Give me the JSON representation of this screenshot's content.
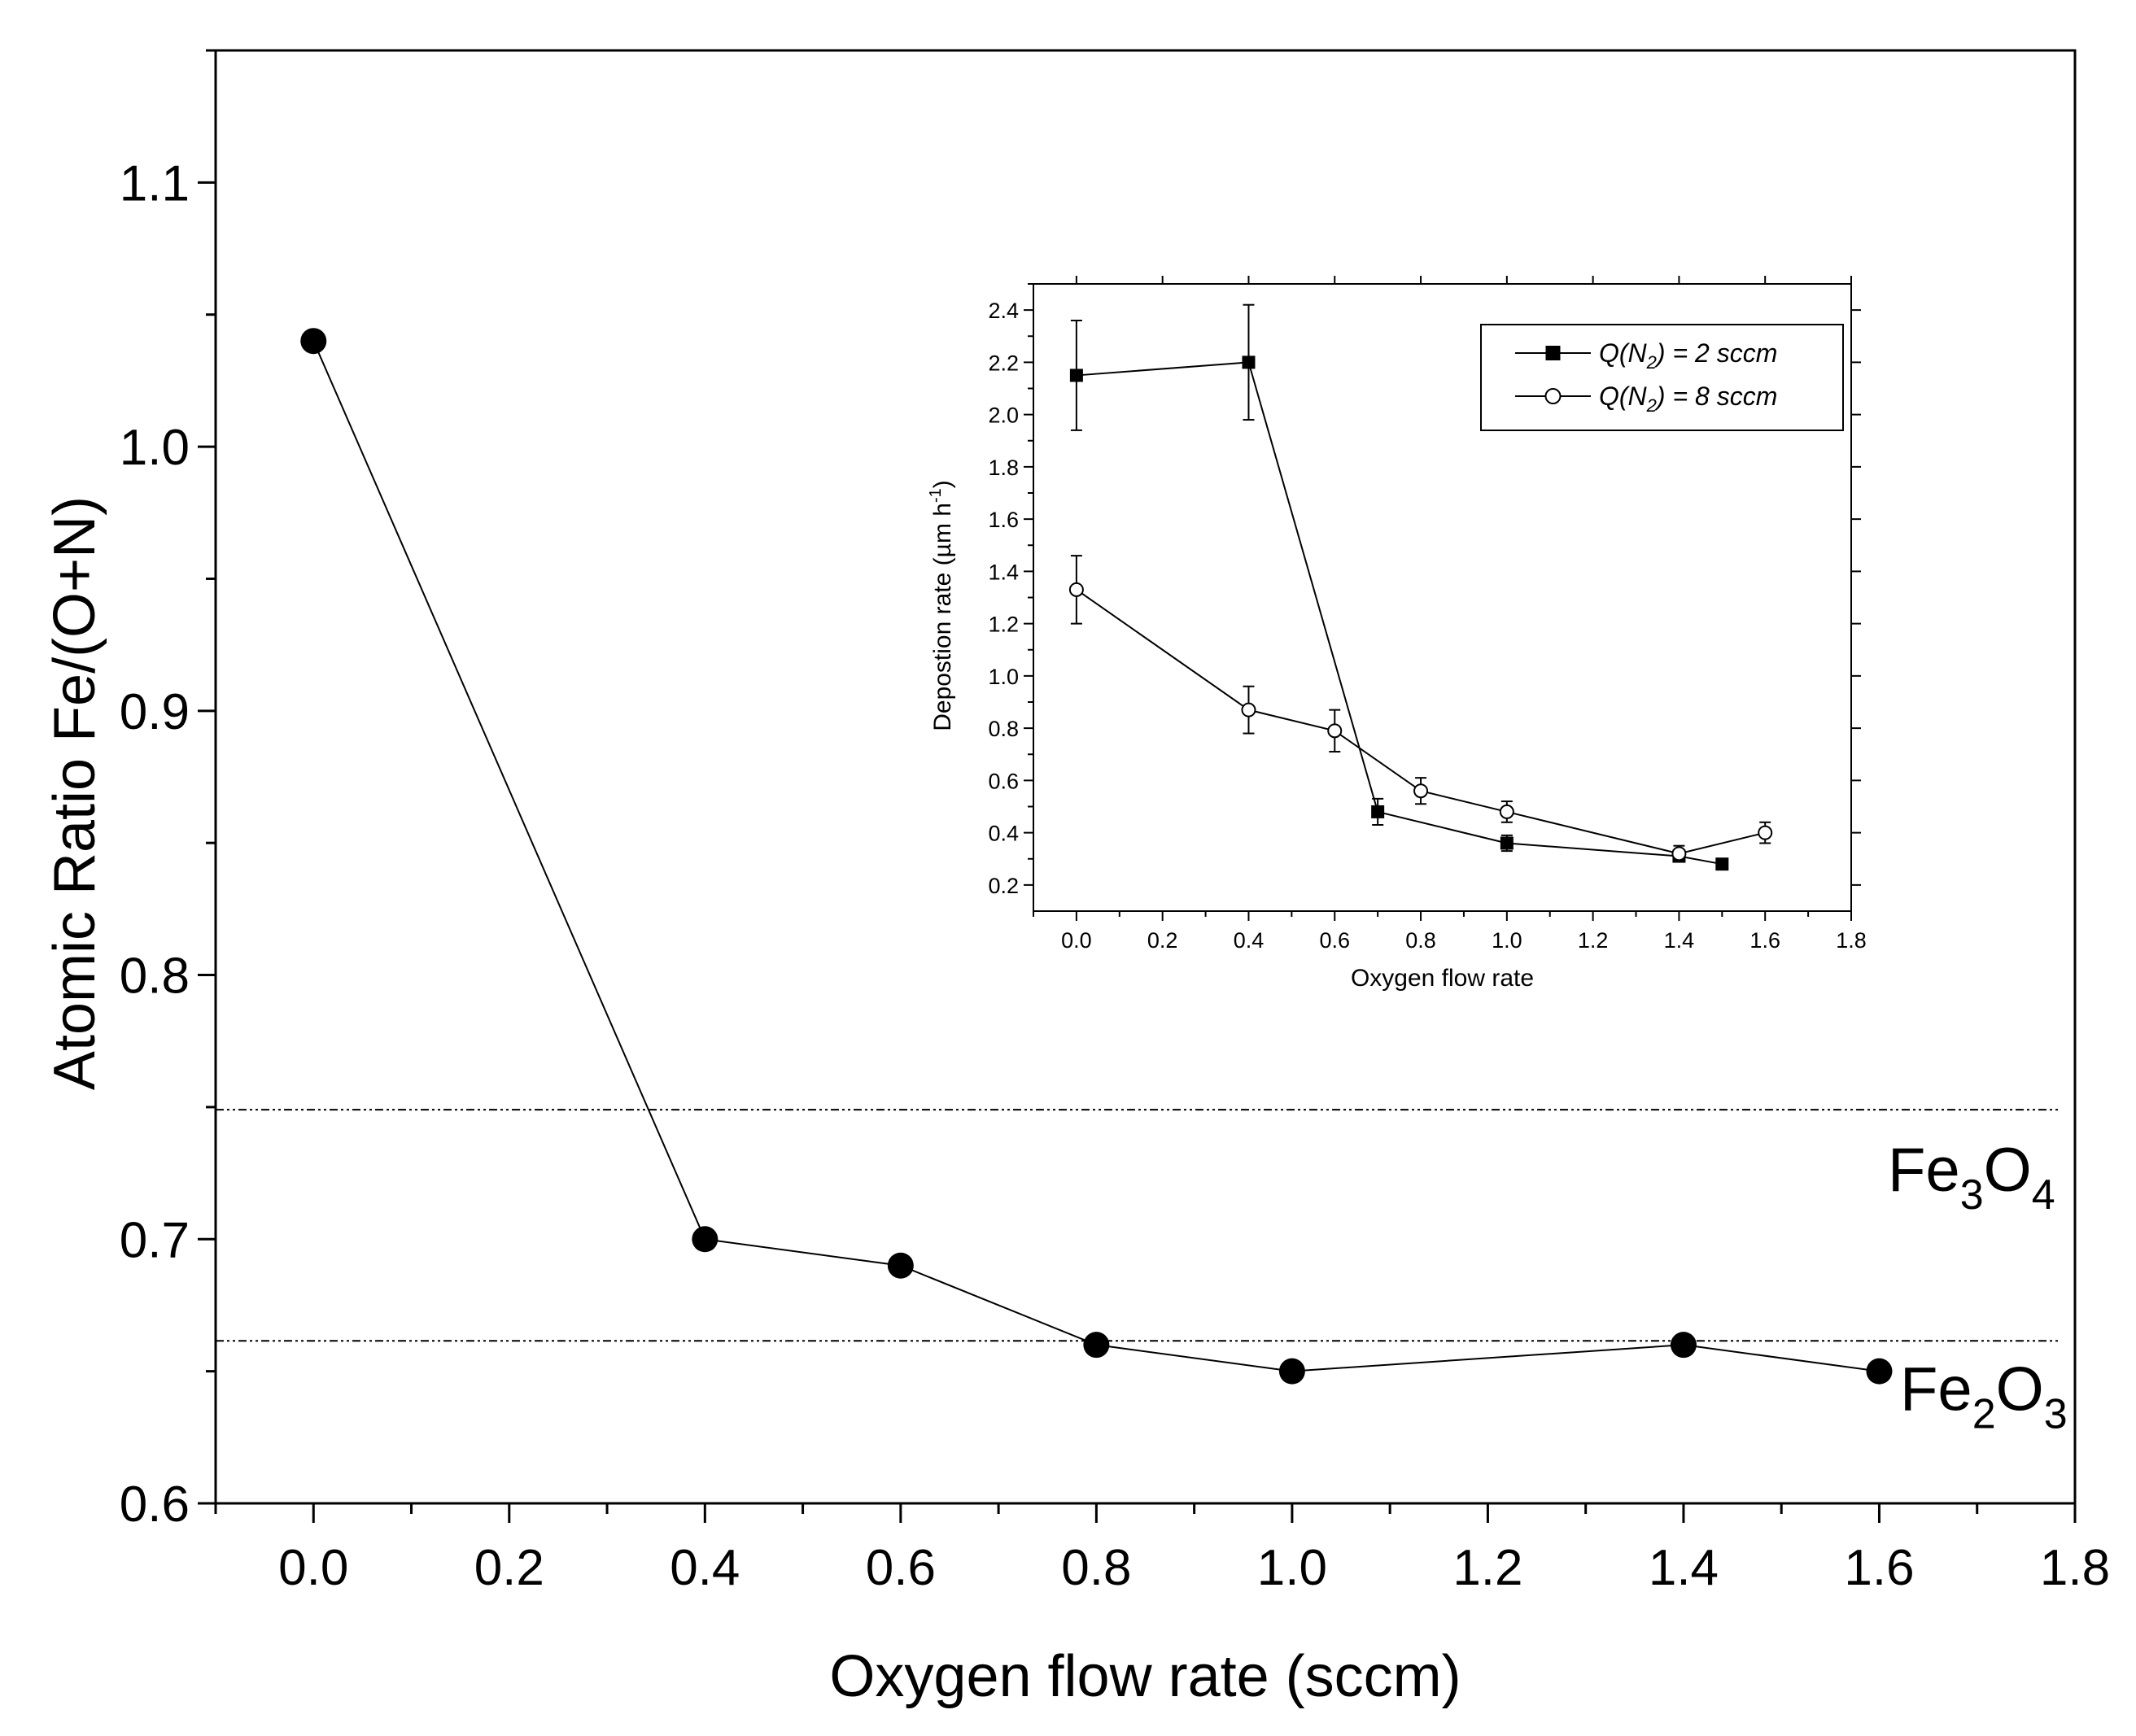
{
  "chart_data": [
    {
      "type": "line",
      "name": "main",
      "title": "",
      "xlabel": "Oxygen flow rate (sccm)",
      "ylabel": "Atomic Ratio Fe/(O+N)",
      "xlim": [
        -0.1,
        1.8
      ],
      "ylim": [
        0.6,
        1.15
      ],
      "xticks": [
        0.0,
        0.2,
        0.4,
        0.6,
        0.8,
        1.0,
        1.2,
        1.4,
        1.6,
        1.8
      ],
      "xtick_labels": [
        "0.0",
        "0.2",
        "0.4",
        "0.6",
        "0.8",
        "1.0",
        "1.2",
        "1.4",
        "1.6",
        "1.8"
      ],
      "yticks": [
        0.6,
        0.7,
        0.8,
        0.9,
        1.0,
        1.1
      ],
      "ytick_labels": [
        "0.6",
        "0.7",
        "0.8",
        "0.9",
        "1.0",
        "1.1"
      ],
      "grid": false,
      "series": [
        {
          "name": "Fe/(O+N)",
          "marker": "filled-circle",
          "x": [
            0.0,
            0.4,
            0.6,
            0.8,
            1.0,
            1.4,
            1.6
          ],
          "values": [
            1.04,
            0.7,
            0.69,
            0.66,
            0.65,
            0.66,
            0.65
          ]
        }
      ],
      "reference_lines": [
        {
          "y": 0.749,
          "label_main": "Fe",
          "label_sub1": "3",
          "label_mid": "O",
          "label_sub2": "4"
        },
        {
          "y": 0.6615,
          "label_main": "Fe",
          "label_sub1": "2",
          "label_mid": "O",
          "label_sub2": "3"
        }
      ]
    },
    {
      "type": "line",
      "name": "inset",
      "title": "",
      "xlabel": "Oxygen flow rate",
      "ylabel_prefix": "Depostion rate (",
      "ylabel_unit": "µm h",
      "ylabel_sup": "-1",
      "ylabel_suffix": ")",
      "xlim": [
        -0.1,
        1.8
      ],
      "ylim": [
        0.1,
        2.5
      ],
      "xticks": [
        0.0,
        0.2,
        0.4,
        0.6,
        0.8,
        1.0,
        1.2,
        1.4,
        1.6,
        1.8
      ],
      "xtick_labels": [
        "0.0",
        "0.2",
        "0.4",
        "0.6",
        "0.8",
        "1.0",
        "1.2",
        "1.4",
        "1.6",
        "1.8"
      ],
      "yticks": [
        0.2,
        0.4,
        0.6,
        0.8,
        1.0,
        1.2,
        1.4,
        1.6,
        1.8,
        2.0,
        2.2,
        2.4
      ],
      "ytick_labels": [
        "0.2",
        "0.4",
        "0.6",
        "0.8",
        "1.0",
        "1.2",
        "1.4",
        "1.6",
        "1.8",
        "2.0",
        "2.2",
        "2.4"
      ],
      "legend_position": "top-right",
      "series": [
        {
          "name": "Q(N2) = 2 sccm",
          "legend_pre": "Q(N",
          "legend_sub": "2",
          "legend_post": ") = 2 sccm",
          "marker": "filled-square",
          "x": [
            0.0,
            0.4,
            0.7,
            1.0,
            1.4,
            1.5
          ],
          "values": [
            2.15,
            2.2,
            0.48,
            0.36,
            0.31,
            0.28
          ],
          "errors": [
            0.21,
            0.22,
            0.05,
            0.03,
            0.02,
            0.0
          ]
        },
        {
          "name": "Q(N2) = 8 sccm",
          "legend_pre": "Q(N",
          "legend_sub": "2",
          "legend_post": ") = 8 sccm",
          "marker": "open-circle",
          "x": [
            0.0,
            0.4,
            0.6,
            0.8,
            1.0,
            1.4,
            1.6
          ],
          "values": [
            1.33,
            0.87,
            0.79,
            0.56,
            0.48,
            0.32,
            0.4
          ],
          "errors": [
            0.13,
            0.09,
            0.08,
            0.05,
            0.04,
            0.03,
            0.04
          ]
        }
      ]
    }
  ]
}
